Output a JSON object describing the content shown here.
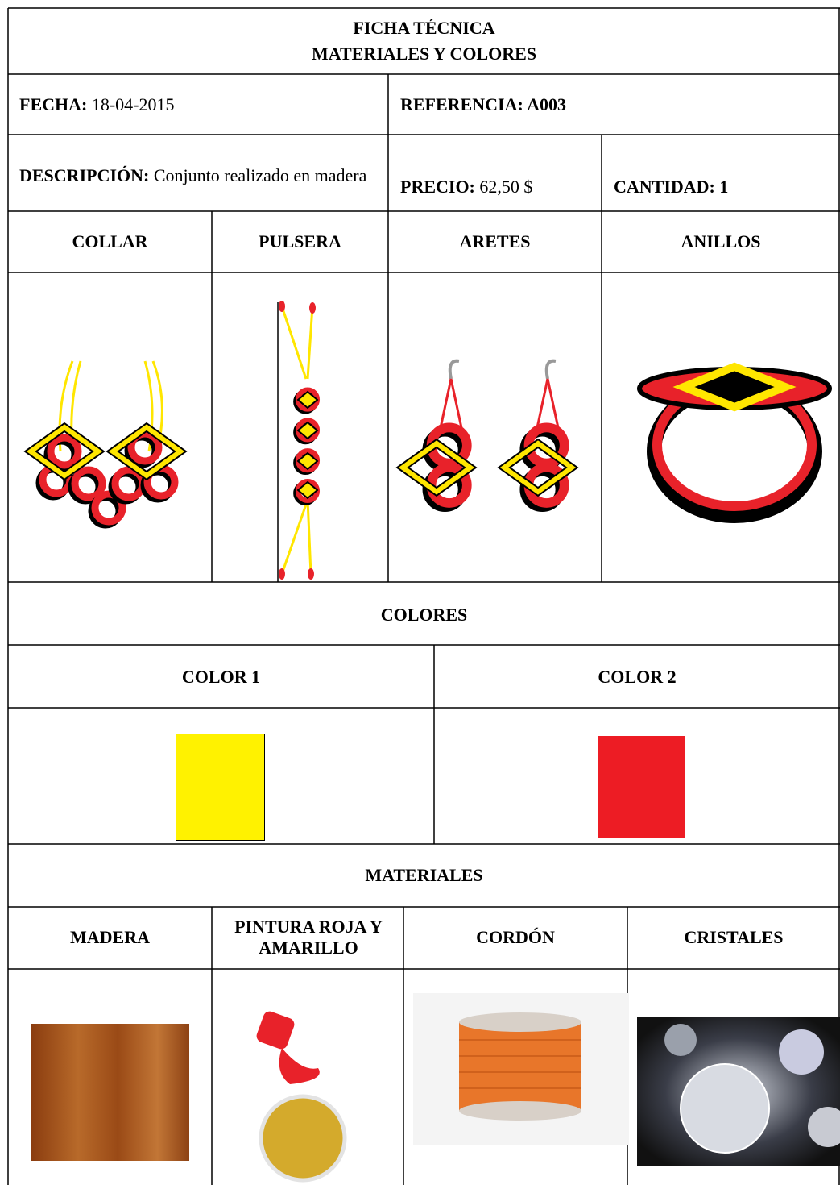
{
  "header": {
    "title": "FICHA TÉCNICA",
    "subtitle": "MATERIALES Y COLORES"
  },
  "info": {
    "fecha_label": "FECHA:",
    "fecha": "18-04-2015",
    "referencia": "REFERENCIA: A003",
    "descripcion_label": "DESCRIPCIÓN:",
    "descripcion": "Conjunto realizado en madera",
    "precio_label": "PRECIO:",
    "precio": "62,50 $",
    "cantidad": "CANTIDAD: 1"
  },
  "products": [
    "COLLAR",
    "PULSERA",
    "ARETES",
    "ANILLOS"
  ],
  "colors": {
    "title": "COLORES",
    "items": [
      {
        "label": "COLOR 1",
        "color": "#fff200"
      },
      {
        "label": "COLOR 2",
        "color": "#ed1c24"
      }
    ]
  },
  "materials": {
    "title": "MATERIALES",
    "items": [
      "MADERA",
      "PINTURA ROJA Y AMARILLO",
      "CORDÓN",
      "CRISTALES"
    ]
  }
}
